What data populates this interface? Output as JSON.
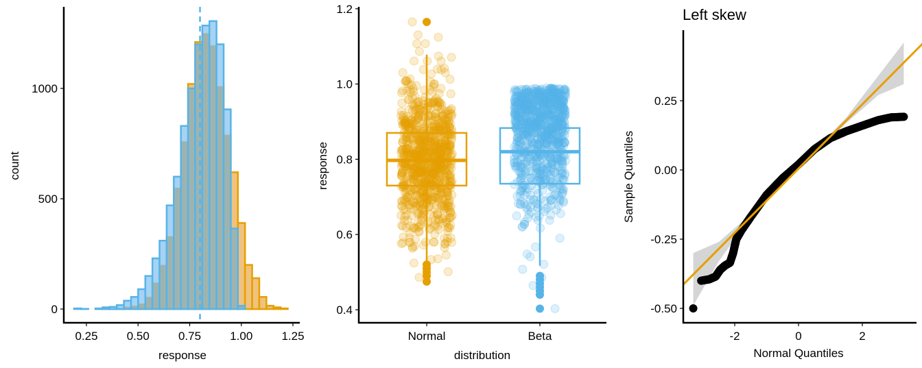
{
  "colors": {
    "normal": "#E69F00",
    "beta": "#56B4E9",
    "normal_fill": "#F0C27F",
    "beta_fill": "#A6D2F3",
    "overlap_fill": "#9FB3AE",
    "ci_band": "#D3D3D3",
    "qq_points": "#000000",
    "axis": "#000000"
  },
  "chart_data": [
    {
      "type": "bar",
      "subtype": "overlaid-histogram",
      "title": "",
      "xlabel": "response",
      "ylabel": "count",
      "xlim": [
        0.17,
        1.26
      ],
      "ylim": [
        -60,
        1360
      ],
      "x_ticks": [
        0.25,
        0.5,
        0.75,
        1.0,
        1.25
      ],
      "x_tick_labels": [
        "0.25",
        "0.50",
        "0.75",
        "1.00",
        "1.25"
      ],
      "y_ticks": [
        0,
        500,
        1000
      ],
      "y_tick_labels": [
        "0",
        "500",
        "1000"
      ],
      "grid": false,
      "legend": "none",
      "bin_width": 0.0345,
      "bin_start": 0.19,
      "median_line": {
        "x": 0.8,
        "style": "dashed",
        "series": "Beta"
      },
      "series": [
        {
          "name": "Normal",
          "values": [
            0,
            0,
            0,
            2,
            3,
            3,
            5,
            10,
            15,
            25,
            55,
            120,
            200,
            330,
            550,
            760,
            1020,
            1210,
            1250,
            1195,
            1010,
            790,
            620,
            390,
            200,
            140,
            55,
            15,
            8,
            3
          ]
        },
        {
          "name": "Beta",
          "values": [
            3,
            1,
            0,
            3,
            8,
            10,
            18,
            38,
            55,
            90,
            150,
            230,
            310,
            470,
            600,
            830,
            1000,
            1200,
            1285,
            1305,
            1200,
            905,
            365,
            15,
            0,
            0,
            0,
            0,
            0,
            0
          ]
        }
      ]
    },
    {
      "type": "boxplot",
      "subtype": "boxplot-with-jitter",
      "title": "",
      "xlabel": "distribution",
      "ylabel": "response",
      "ylim": [
        0.37,
        1.205
      ],
      "y_ticks": [
        0.4,
        0.6,
        0.8,
        1.0,
        1.2
      ],
      "y_tick_labels": [
        "0.4",
        "0.6",
        "0.8",
        "1.0",
        "1.2"
      ],
      "categories": [
        "Normal",
        "Beta"
      ],
      "grid": false,
      "legend": "none",
      "boxes": [
        {
          "name": "Normal",
          "whisker_low": 0.52,
          "q1": 0.73,
          "median": 0.797,
          "q3": 0.87,
          "whisker_high": 1.078,
          "outliers": [
            1.165,
            0.52,
            0.51,
            0.5,
            0.49,
            0.475
          ],
          "jitter_range": [
            0.475,
            1.165
          ],
          "jitter_n": 900
        },
        {
          "name": "Beta",
          "whisker_low": 0.517,
          "q1": 0.735,
          "median": 0.82,
          "q3": 0.883,
          "whisker_high": 0.988,
          "outliers": [
            0.49,
            0.48,
            0.47,
            0.46,
            0.45,
            0.44,
            0.403
          ],
          "jitter_range": [
            0.403,
            0.99
          ],
          "jitter_n": 900
        }
      ]
    },
    {
      "type": "scatter",
      "subtype": "qq-plot",
      "title": "Left skew",
      "xlabel": "Normal Quantiles",
      "ylabel": "Sample Quantiles",
      "xlim": [
        -3.6,
        3.6
      ],
      "ylim": [
        -0.55,
        0.48
      ],
      "x_ticks": [
        -2,
        0,
        2
      ],
      "x_tick_labels": [
        "-2",
        "0",
        "2"
      ],
      "y_ticks": [
        -0.5,
        -0.25,
        0.0,
        0.25
      ],
      "y_tick_labels": [
        "-0.50",
        "-0.25",
        "0.00",
        "0.25"
      ],
      "grid": false,
      "legend": "none",
      "reference_line": {
        "slope": 0.116,
        "intercept": 0.005,
        "color": "#E69F00"
      },
      "ci_band": {
        "x": [
          -3.3,
          -2.5,
          -1.5,
          0,
          1.5,
          2.5,
          3.3
        ],
        "lower": [
          -0.49,
          -0.33,
          -0.17,
          0.0,
          0.17,
          0.27,
          0.31
        ],
        "upper": [
          -0.3,
          -0.26,
          -0.16,
          0.01,
          0.19,
          0.34,
          0.46
        ]
      },
      "points_curve": {
        "x": [
          -3.3,
          -3.05,
          -2.8,
          -2.6,
          -2.45,
          -2.3,
          -2.15,
          -2.05,
          -1.95,
          -1.8,
          -1.5,
          -1.0,
          -0.5,
          0.0,
          0.5,
          1.0,
          1.5,
          2.0,
          2.5,
          2.9,
          3.3
        ],
        "y": [
          -0.5,
          -0.4,
          -0.395,
          -0.385,
          -0.36,
          -0.345,
          -0.335,
          -0.3,
          -0.25,
          -0.22,
          -0.17,
          -0.09,
          -0.03,
          0.02,
          0.075,
          0.115,
          0.14,
          0.16,
          0.18,
          0.19,
          0.192
        ]
      }
    }
  ]
}
